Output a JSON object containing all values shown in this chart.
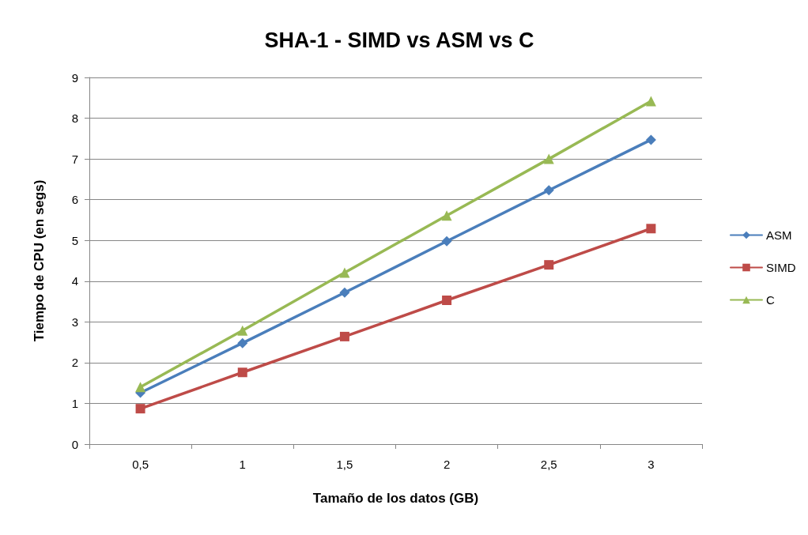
{
  "chart_data": {
    "type": "line",
    "title": "SHA-1 - SIMD vs ASM vs C",
    "xlabel": "Tamaño de los datos (GB)",
    "ylabel": "Tiempo de CPU (en segs)",
    "categories": [
      "0,5",
      "1",
      "1,5",
      "2",
      "2,5",
      "3"
    ],
    "series": [
      {
        "name": "ASM",
        "color": "#4a7ebb",
        "marker": "diamond",
        "values": [
          1.26,
          2.48,
          3.72,
          4.98,
          6.23,
          7.47
        ]
      },
      {
        "name": "SIMD",
        "color": "#be4b48",
        "marker": "square",
        "values": [
          0.87,
          1.76,
          2.64,
          3.53,
          4.4,
          5.29
        ]
      },
      {
        "name": "C",
        "color": "#98b954",
        "marker": "triangle",
        "values": [
          1.4,
          2.79,
          4.21,
          5.61,
          7.0,
          8.42
        ]
      }
    ],
    "ylim": [
      0,
      9
    ],
    "yticks": [
      0,
      1,
      2,
      3,
      4,
      5,
      6,
      7,
      8,
      9
    ],
    "grid": "y",
    "legend": "right"
  }
}
